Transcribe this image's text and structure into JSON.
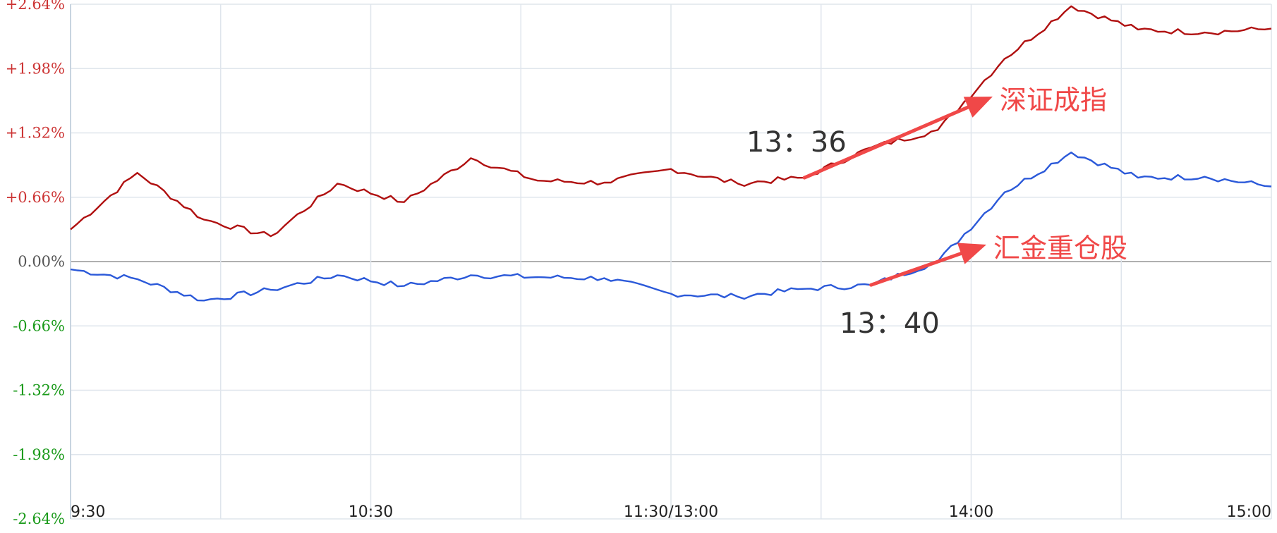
{
  "chart_data": {
    "type": "line",
    "title": "",
    "xlabel": "",
    "ylabel": "",
    "x_tick_labels": [
      "9:30",
      "10:30",
      "11:30/13:00",
      "14:00",
      "15:00"
    ],
    "y_tick_labels": [
      "+2.64%",
      "+1.98%",
      "+1.32%",
      "+0.66%",
      "0.00%",
      "-0.66%",
      "-1.32%",
      "-1.98%",
      "-2.64%"
    ],
    "ylim": [
      -2.64,
      2.64
    ],
    "grid": true,
    "colors": {
      "positive": "#cc3333",
      "zero": "#555555",
      "negative": "#1a9a1a",
      "grid": "#dfe5ec",
      "zero_line": "#b0b0b0"
    },
    "x_points": [
      "9:30",
      "9:45",
      "10:00",
      "10:15",
      "10:30",
      "10:45",
      "11:00",
      "11:15",
      "11:30/13:00",
      "13:15",
      "13:30",
      "13:36",
      "13:40",
      "13:45",
      "14:00",
      "14:15",
      "14:30",
      "14:45",
      "15:00"
    ],
    "series": [
      {
        "color": "#b01010",
        "values": [
          0.33,
          0.91,
          0.43,
          0.26,
          0.8,
          0.61,
          1.06,
          0.83,
          0.81,
          0.95,
          0.8,
          0.86,
          1.17,
          1.35,
          2.08,
          2.62,
          2.38,
          2.35,
          2.39
        ]
      },
      {
        "color": "#2b59d9",
        "values": [
          -0.08,
          -0.18,
          -0.4,
          -0.29,
          -0.14,
          -0.25,
          -0.14,
          -0.16,
          -0.17,
          -0.33,
          -0.36,
          -0.28,
          -0.24,
          0.0,
          0.71,
          1.12,
          0.86,
          0.87,
          0.77
        ]
      }
    ],
    "annotations": [
      {
        "label": "深证成指",
        "label_color": "#f04848",
        "time_label": "13：36",
        "arrow_color": "#f04848"
      },
      {
        "label": "汇金重仓股",
        "label_color": "#f04848",
        "time_label": "13：40",
        "arrow_color": "#f04848"
      }
    ]
  }
}
